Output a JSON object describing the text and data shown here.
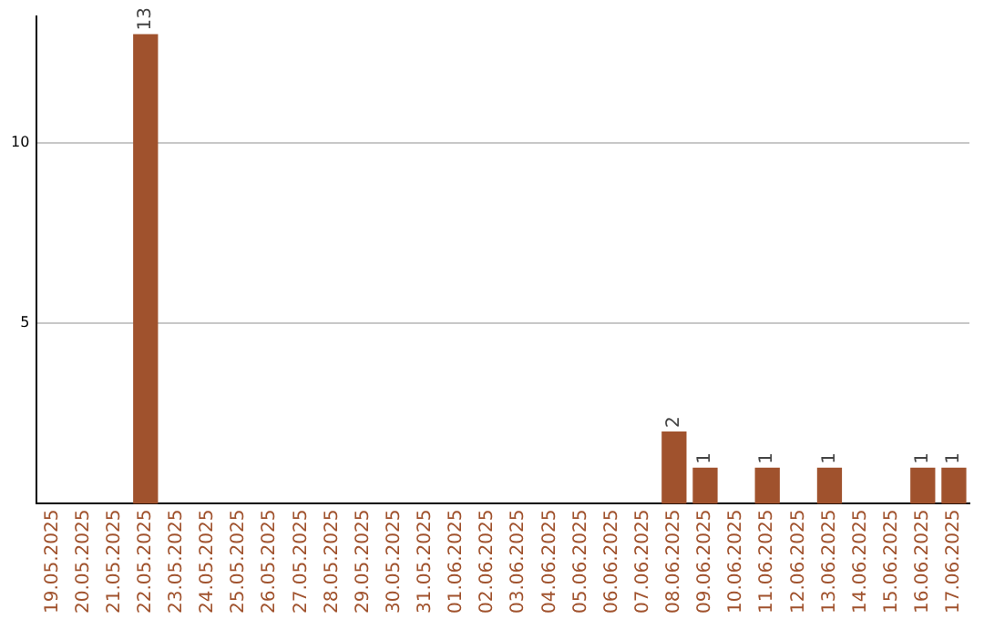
{
  "chart_data": {
    "type": "bar",
    "categories": [
      "19.05.2025",
      "20.05.2025",
      "21.05.2025",
      "22.05.2025",
      "23.05.2025",
      "24.05.2025",
      "25.05.2025",
      "26.05.2025",
      "27.05.2025",
      "28.05.2025",
      "29.05.2025",
      "30.05.2025",
      "31.05.2025",
      "01.06.2025",
      "02.06.2025",
      "03.06.2025",
      "04.06.2025",
      "05.06.2025",
      "06.06.2025",
      "07.06.2025",
      "08.06.2025",
      "09.06.2025",
      "10.06.2025",
      "11.06.2025",
      "12.06.2025",
      "13.06.2025",
      "14.06.2025",
      "15.06.2025",
      "16.06.2025",
      "17.06.2025"
    ],
    "values": [
      0,
      0,
      0,
      13,
      0,
      0,
      0,
      0,
      0,
      0,
      0,
      0,
      0,
      0,
      0,
      0,
      0,
      0,
      0,
      0,
      2,
      1,
      0,
      1,
      0,
      1,
      0,
      0,
      1,
      1
    ],
    "value_labels": [
      null,
      null,
      null,
      "13",
      null,
      null,
      null,
      null,
      null,
      null,
      null,
      null,
      null,
      null,
      null,
      null,
      null,
      null,
      null,
      null,
      "2",
      "1",
      null,
      "1",
      null,
      "1",
      null,
      null,
      "1",
      "1"
    ],
    "color": "#a0522d",
    "ylim": [
      0,
      13.5
    ],
    "yticks": [
      5,
      10
    ],
    "grid": "y"
  }
}
